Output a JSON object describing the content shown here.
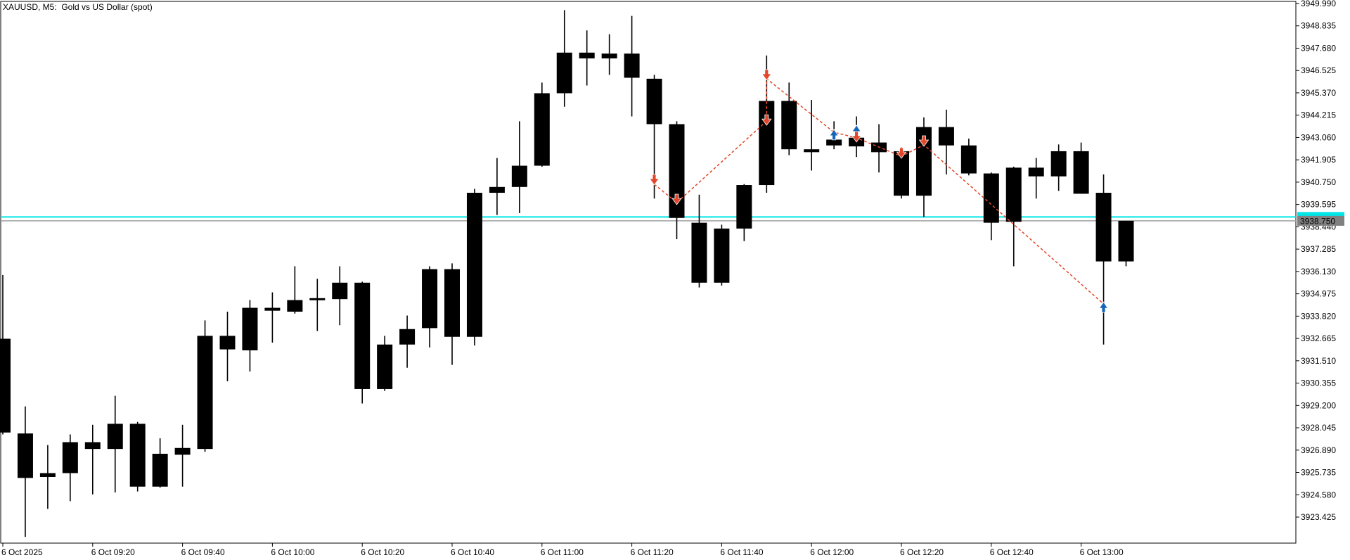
{
  "window": {
    "title": "XAUUSD, M5:  Gold vs US Dollar (spot)"
  },
  "price_axis": {
    "labels": [
      "3949.990",
      "3948.835",
      "3947.680",
      "3946.525",
      "3945.370",
      "3944.215",
      "3943.060",
      "3941.905",
      "3940.750",
      "3939.595",
      "3938.440",
      "3937.285",
      "3936.130",
      "3934.975",
      "3933.820",
      "3932.665",
      "3931.510",
      "3930.355",
      "3929.200",
      "3928.045",
      "3926.890",
      "3925.735",
      "3924.580",
      "3923.425"
    ],
    "bid_label": "3938.750"
  },
  "time_axis": {
    "labels": [
      {
        "text": "6 Oct 2025",
        "candle": 0
      },
      {
        "text": "6 Oct 09:20",
        "candle": 4
      },
      {
        "text": "6 Oct 09:40",
        "candle": 8
      },
      {
        "text": "6 Oct 10:00",
        "candle": 12
      },
      {
        "text": "6 Oct 10:20",
        "candle": 16
      },
      {
        "text": "6 Oct 10:40",
        "candle": 20
      },
      {
        "text": "6 Oct 11:00",
        "candle": 24
      },
      {
        "text": "6 Oct 11:20",
        "candle": 28
      },
      {
        "text": "6 Oct 11:40",
        "candle": 32
      },
      {
        "text": "6 Oct 12:00",
        "candle": 36
      },
      {
        "text": "6 Oct 12:20",
        "candle": 40
      },
      {
        "text": "6 Oct 12:40",
        "candle": 44
      },
      {
        "text": "6 Oct 13:00",
        "candle": 48
      }
    ]
  },
  "chart_data": {
    "type": "candlestick",
    "symbol": "XAUUSD",
    "timeframe": "M5",
    "title": "Gold vs US Dollar (spot)",
    "date": "6 Oct 2025",
    "bid": 3938.75,
    "ask_line_price": 3938.95,
    "ylim": [
      3923.425,
      3949.99
    ],
    "grid": false,
    "colors": {
      "candle": "#000000",
      "background": "#ffffff",
      "sell_arrow": "#e2472a",
      "buy_arrow": "#1565b8",
      "zigzag": "#e2472a",
      "ask_line": "#00e5e5",
      "bid_line": "#a0a0a0",
      "bid_box": "#808080",
      "ask_box": "#00e5e5"
    },
    "candles": [
      {
        "time": "09:00",
        "o": 3932.65,
        "h": 3935.95,
        "l": 3927.7,
        "c": 3927.8
      },
      {
        "time": "09:05",
        "o": 3927.75,
        "h": 3929.15,
        "l": 3922.4,
        "c": 3925.45
      },
      {
        "time": "09:10",
        "o": 3925.5,
        "h": 3927.15,
        "l": 3923.85,
        "c": 3925.7
      },
      {
        "time": "09:15",
        "o": 3925.7,
        "h": 3927.7,
        "l": 3924.25,
        "c": 3927.3
      },
      {
        "time": "09:20",
        "o": 3927.3,
        "h": 3928.2,
        "l": 3924.6,
        "c": 3926.95
      },
      {
        "time": "09:25",
        "o": 3926.95,
        "h": 3929.7,
        "l": 3924.7,
        "c": 3928.25
      },
      {
        "time": "09:30",
        "o": 3928.25,
        "h": 3928.35,
        "l": 3924.75,
        "c": 3925.0
      },
      {
        "time": "09:35",
        "o": 3925.0,
        "h": 3927.5,
        "l": 3924.95,
        "c": 3926.7
      },
      {
        "time": "09:40",
        "o": 3926.65,
        "h": 3928.2,
        "l": 3925.0,
        "c": 3927.0
      },
      {
        "time": "09:45",
        "o": 3926.95,
        "h": 3933.6,
        "l": 3926.8,
        "c": 3932.8
      },
      {
        "time": "09:50",
        "o": 3932.8,
        "h": 3934.05,
        "l": 3930.45,
        "c": 3932.1
      },
      {
        "time": "09:55",
        "o": 3932.05,
        "h": 3934.65,
        "l": 3930.95,
        "c": 3934.25
      },
      {
        "time": "10:00",
        "o": 3934.25,
        "h": 3935.05,
        "l": 3932.45,
        "c": 3934.1
      },
      {
        "time": "10:05",
        "o": 3934.05,
        "h": 3936.4,
        "l": 3933.95,
        "c": 3934.65
      },
      {
        "time": "10:10",
        "o": 3934.65,
        "h": 3935.75,
        "l": 3933.05,
        "c": 3934.75
      },
      {
        "time": "10:15",
        "o": 3934.7,
        "h": 3936.4,
        "l": 3933.35,
        "c": 3935.55
      },
      {
        "time": "10:20",
        "o": 3935.55,
        "h": 3935.6,
        "l": 3929.3,
        "c": 3930.05
      },
      {
        "time": "10:25",
        "o": 3930.05,
        "h": 3932.8,
        "l": 3929.95,
        "c": 3932.35
      },
      {
        "time": "10:30",
        "o": 3932.35,
        "h": 3933.85,
        "l": 3931.15,
        "c": 3933.15
      },
      {
        "time": "10:35",
        "o": 3933.2,
        "h": 3936.4,
        "l": 3932.2,
        "c": 3936.25
      },
      {
        "time": "10:40",
        "o": 3936.25,
        "h": 3936.55,
        "l": 3931.3,
        "c": 3932.75
      },
      {
        "time": "10:45",
        "o": 3932.75,
        "h": 3940.4,
        "l": 3932.3,
        "c": 3940.2
      },
      {
        "time": "10:50",
        "o": 3940.2,
        "h": 3942.0,
        "l": 3939.05,
        "c": 3940.5
      },
      {
        "time": "10:55",
        "o": 3940.5,
        "h": 3943.9,
        "l": 3939.15,
        "c": 3941.6
      },
      {
        "time": "11:00",
        "o": 3941.6,
        "h": 3945.9,
        "l": 3941.55,
        "c": 3945.35
      },
      {
        "time": "11:05",
        "o": 3945.35,
        "h": 3949.65,
        "l": 3944.65,
        "c": 3947.45
      },
      {
        "time": "11:10",
        "o": 3947.45,
        "h": 3948.6,
        "l": 3945.75,
        "c": 3947.15
      },
      {
        "time": "11:15",
        "o": 3947.15,
        "h": 3948.4,
        "l": 3946.3,
        "c": 3947.4
      },
      {
        "time": "11:20",
        "o": 3947.4,
        "h": 3949.35,
        "l": 3944.15,
        "c": 3946.15
      },
      {
        "time": "11:25",
        "o": 3946.1,
        "h": 3946.3,
        "l": 3939.9,
        "c": 3943.75
      },
      {
        "time": "11:30",
        "o": 3943.75,
        "h": 3943.9,
        "l": 3937.8,
        "c": 3938.9
      },
      {
        "time": "11:35",
        "o": 3938.65,
        "h": 3940.1,
        "l": 3935.3,
        "c": 3935.55
      },
      {
        "time": "11:40",
        "o": 3935.55,
        "h": 3938.55,
        "l": 3935.4,
        "c": 3938.35
      },
      {
        "time": "11:45",
        "o": 3938.35,
        "h": 3940.65,
        "l": 3937.7,
        "c": 3940.6
      },
      {
        "time": "11:50",
        "o": 3940.6,
        "h": 3947.3,
        "l": 3940.2,
        "c": 3944.95
      },
      {
        "time": "11:55",
        "o": 3944.95,
        "h": 3945.9,
        "l": 3942.15,
        "c": 3942.45
      },
      {
        "time": "12:00",
        "o": 3942.45,
        "h": 3945.0,
        "l": 3941.35,
        "c": 3942.3
      },
      {
        "time": "12:05",
        "o": 3942.65,
        "h": 3943.9,
        "l": 3942.45,
        "c": 3942.95
      },
      {
        "time": "12:10",
        "o": 3943.05,
        "h": 3944.15,
        "l": 3942.05,
        "c": 3942.6
      },
      {
        "time": "12:15",
        "o": 3942.8,
        "h": 3943.75,
        "l": 3941.25,
        "c": 3942.3
      },
      {
        "time": "12:20",
        "o": 3942.35,
        "h": 3942.55,
        "l": 3939.9,
        "c": 3940.05
      },
      {
        "time": "12:25",
        "o": 3940.05,
        "h": 3944.1,
        "l": 3938.95,
        "c": 3943.6
      },
      {
        "time": "12:30",
        "o": 3943.6,
        "h": 3944.5,
        "l": 3941.15,
        "c": 3942.65
      },
      {
        "time": "12:35",
        "o": 3942.65,
        "h": 3943.0,
        "l": 3941.1,
        "c": 3941.2
      },
      {
        "time": "12:40",
        "o": 3941.2,
        "h": 3941.25,
        "l": 3937.75,
        "c": 3938.65
      },
      {
        "time": "12:45",
        "o": 3938.7,
        "h": 3941.55,
        "l": 3936.4,
        "c": 3941.5
      },
      {
        "time": "12:50",
        "o": 3941.5,
        "h": 3942.0,
        "l": 3939.9,
        "c": 3941.05
      },
      {
        "time": "12:55",
        "o": 3941.05,
        "h": 3942.7,
        "l": 3940.3,
        "c": 3942.35
      },
      {
        "time": "13:00",
        "o": 3942.35,
        "h": 3942.8,
        "l": 3940.15,
        "c": 3940.15
      },
      {
        "time": "13:05",
        "o": 3940.2,
        "h": 3941.15,
        "l": 3932.35,
        "c": 3936.65
      },
      {
        "time": "13:10",
        "o": 3936.65,
        "h": 3938.75,
        "l": 3936.4,
        "c": 3938.75
      }
    ],
    "signals": [
      {
        "type": "sell",
        "candle": 29,
        "price": 3940.82
      },
      {
        "type": "sell",
        "candle": 30,
        "price": 3939.8
      },
      {
        "type": "sell",
        "candle": 34,
        "price": 3943.91
      },
      {
        "type": "sell",
        "candle": 34,
        "price": 3946.24
      },
      {
        "type": "buy",
        "candle": 37,
        "price": 3943.26
      },
      {
        "type": "buy",
        "candle": 38,
        "price": 3943.48
      },
      {
        "type": "sell",
        "candle": 38,
        "price": 3943.04
      },
      {
        "type": "sell",
        "candle": 40,
        "price": 3942.2
      },
      {
        "type": "sell",
        "candle": 41,
        "price": 3942.82
      },
      {
        "type": "buy",
        "candle": 49,
        "price": 3934.34
      }
    ],
    "zigzag": [
      [
        29,
        3940.64
      ],
      [
        30,
        3939.69
      ],
      [
        34,
        3943.91
      ],
      [
        34,
        3946.1
      ],
      [
        37,
        3943.33
      ],
      [
        38,
        3943.04
      ],
      [
        40,
        3942.09
      ],
      [
        41,
        3942.68
      ],
      [
        49,
        3934.45
      ]
    ]
  }
}
